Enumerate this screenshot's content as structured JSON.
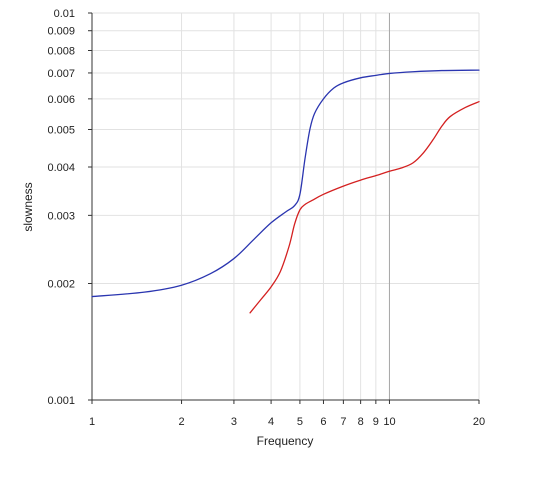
{
  "chart_data": {
    "type": "line",
    "title": "",
    "xlabel": "Frequency",
    "ylabel": "slowness",
    "xscale": "log",
    "yscale": "log",
    "xlim": [
      1,
      20
    ],
    "ylim": [
      0.001,
      0.01
    ],
    "grid": true,
    "legend": "none",
    "x_ticks": [
      {
        "value": 1,
        "label": "1"
      },
      {
        "value": 2,
        "label": "2"
      },
      {
        "value": 3,
        "label": "3"
      },
      {
        "value": 4,
        "label": "4"
      },
      {
        "value": 5,
        "label": "5"
      },
      {
        "value": 6,
        "label": "6"
      },
      {
        "value": 7,
        "label": "7"
      },
      {
        "value": 8,
        "label": "8"
      },
      {
        "value": 9,
        "label": "9"
      },
      {
        "value": 10,
        "label": "10"
      },
      {
        "value": 20,
        "label": "20"
      }
    ],
    "y_ticks": [
      {
        "value": 0.001,
        "label": "0.001"
      },
      {
        "value": 0.002,
        "label": "0.002"
      },
      {
        "value": 0.003,
        "label": "0.003"
      },
      {
        "value": 0.004,
        "label": "0.004"
      },
      {
        "value": 0.005,
        "label": "0.005"
      },
      {
        "value": 0.006,
        "label": "0.006"
      },
      {
        "value": 0.007,
        "label": "0.007"
      },
      {
        "value": 0.008,
        "label": "0.008"
      },
      {
        "value": 0.009,
        "label": "0.009"
      },
      {
        "value": 0.01,
        "label": "0.01"
      }
    ],
    "highlight_x": 10,
    "series": [
      {
        "color": "#2a35b0",
        "x": [
          1.0,
          1.5,
          2.0,
          2.5,
          3.0,
          3.5,
          4.0,
          4.5,
          4.8,
          5.0,
          5.2,
          5.4,
          5.6,
          6.0,
          6.5,
          7.0,
          8.0,
          9.0,
          10.0,
          12.0,
          15.0,
          20.0
        ],
        "y": [
          0.00185,
          0.0019,
          0.00198,
          0.00212,
          0.00232,
          0.0026,
          0.00287,
          0.00307,
          0.00318,
          0.0034,
          0.0042,
          0.005,
          0.0055,
          0.006,
          0.0064,
          0.0066,
          0.0068,
          0.0069,
          0.00698,
          0.00705,
          0.0071,
          0.00712
        ]
      },
      {
        "color": "#d42020",
        "x": [
          3.4,
          3.7,
          4.0,
          4.3,
          4.6,
          4.8,
          5.0,
          5.2,
          5.5,
          6.0,
          7.0,
          8.0,
          9.0,
          10.0,
          11.0,
          12.0,
          13.0,
          14.0,
          15.0,
          16.0,
          18.0,
          20.0
        ],
        "y": [
          0.00168,
          0.00182,
          0.00196,
          0.00215,
          0.0025,
          0.00285,
          0.0031,
          0.0032,
          0.00328,
          0.0034,
          0.00357,
          0.0037,
          0.0038,
          0.0039,
          0.00398,
          0.0041,
          0.00435,
          0.0047,
          0.0051,
          0.0054,
          0.0057,
          0.0059
        ]
      }
    ]
  }
}
